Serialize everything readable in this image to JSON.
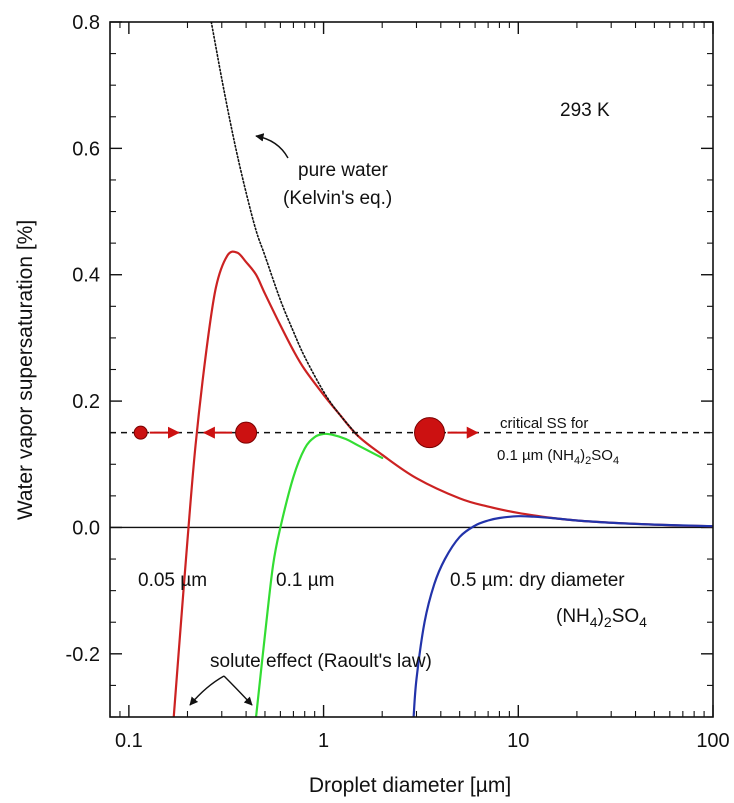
{
  "chart_data": {
    "type": "line",
    "x_scale": "log",
    "xlim": [
      0.08,
      100
    ],
    "ylim": [
      -0.3,
      0.8
    ],
    "xlabel": "Droplet diameter [µm]",
    "ylabel": "Water vapor supersaturation [%]",
    "x_ticks": [
      "0.1",
      "1",
      "10",
      "100"
    ],
    "y_ticks": [
      "-0.2",
      "0.0",
      "0.2",
      "0.4",
      "0.6",
      "0.8"
    ],
    "temperature_label": "293 K",
    "series": [
      {
        "color": "#cc2222",
        "style": "solid",
        "x": [
          0.17,
          0.18,
          0.2,
          0.22,
          0.25,
          0.28,
          0.32,
          0.36,
          0.4,
          0.45,
          0.5,
          0.6,
          0.7,
          0.8,
          1.0,
          1.2,
          1.5,
          2,
          3,
          5,
          7,
          10,
          15,
          20,
          30,
          50,
          70,
          100
        ],
        "y": [
          -0.3,
          -0.2,
          -0.02,
          0.13,
          0.28,
          0.38,
          0.43,
          0.435,
          0.42,
          0.4,
          0.37,
          0.32,
          0.28,
          0.25,
          0.21,
          0.18,
          0.145,
          0.115,
          0.078,
          0.046,
          0.033,
          0.023,
          0.015,
          0.011,
          0.0075,
          0.0045,
          0.003,
          0.002
        ]
      },
      {
        "color": "#33dd33",
        "style": "solid",
        "x": [
          0.45,
          0.5,
          0.55,
          0.6,
          0.7,
          0.8,
          0.9,
          1.0,
          1.1,
          1.3,
          1.5,
          2.0
        ],
        "y": [
          -0.3,
          -0.17,
          -0.06,
          0.0,
          0.08,
          0.125,
          0.143,
          0.148,
          0.147,
          0.14,
          0.13,
          0.11
        ]
      },
      {
        "color": "#2233aa",
        "style": "solid",
        "x": [
          2.9,
          3.0,
          3.3,
          3.7,
          4.2,
          5,
          6,
          7,
          8,
          10,
          12,
          15,
          20,
          30,
          50,
          100
        ],
        "y": [
          -0.3,
          -0.24,
          -0.15,
          -0.09,
          -0.05,
          -0.015,
          0.003,
          0.011,
          0.015,
          0.0178,
          0.017,
          0.0148,
          0.011,
          0.0075,
          0.0045,
          0.002
        ]
      },
      {
        "color": "#111111",
        "style": "dotted",
        "x": [
          0.265,
          0.28,
          0.3,
          0.33,
          0.36,
          0.4,
          0.45,
          0.5,
          0.6,
          0.7,
          0.8,
          1.0,
          1.2,
          1.5
        ],
        "y": [
          0.8,
          0.76,
          0.71,
          0.645,
          0.59,
          0.53,
          0.47,
          0.43,
          0.36,
          0.31,
          0.27,
          0.215,
          0.18,
          0.145
        ]
      }
    ],
    "critical_line": {
      "y": 0.15,
      "label_line1": "critical SS for",
      "label_line2": "0.1 µm (NH",
      "label_sub1": "4",
      "label_mid": ")",
      "label_sub2": "2",
      "label_end": "SO",
      "label_sub3": "4"
    },
    "droplets": [
      {
        "x": 0.115,
        "y": 0.15,
        "size": "small"
      },
      {
        "x": 0.4,
        "y": 0.15,
        "size": "medium"
      },
      {
        "x": 3.5,
        "y": 0.15,
        "size": "large"
      }
    ],
    "droplet_color": "#cc1111",
    "annotations": {
      "pure_water_line1": "pure water",
      "pure_water_line2": "(Kelvin's eq.)",
      "label_005": "0.05 µm",
      "label_01": "0.1 µm",
      "label_05": "0.5 µm: dry diameter",
      "salt_prefix": "(NH",
      "salt_sub1": "4",
      "salt_mid": ")",
      "salt_sub2": "2",
      "salt_end": "SO",
      "salt_sub3": "4",
      "solute_effect": "solute effect (Raoult's law)"
    }
  }
}
